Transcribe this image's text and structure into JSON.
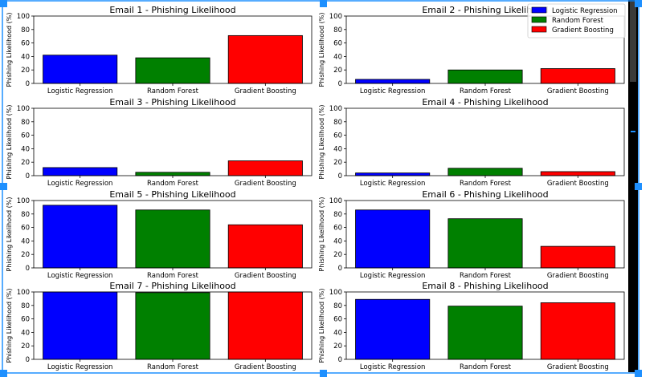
{
  "chart_data": [
    {
      "type": "bar",
      "title": "Email 1 - Phishing Likelihood",
      "ylabel": "Phishing Likelihood (%)",
      "categories": [
        "Logistic Regression",
        "Random Forest",
        "Gradient Boosting"
      ],
      "values": [
        42,
        38,
        71
      ],
      "ylim": [
        0,
        100
      ],
      "yticks": [
        "0",
        "20",
        "40",
        "60",
        "80",
        "100"
      ]
    },
    {
      "type": "bar",
      "title": "Email 2 - Phishing Likelihood",
      "ylabel": "Phishing Likelihood (%)",
      "categories": [
        "Logistic Regression",
        "Random Forest",
        "Gradient Boosting"
      ],
      "values": [
        6,
        20,
        22
      ],
      "ylim": [
        0,
        100
      ],
      "yticks": [
        "0",
        "20",
        "40",
        "60",
        "80",
        "100"
      ],
      "legend": {
        "placement": "top-right",
        "entries": [
          "Logistic Regression",
          "Random Forest",
          "Gradient Boosting"
        ]
      }
    },
    {
      "type": "bar",
      "title": "Email 3 - Phishing Likelihood",
      "ylabel": "Phishing Likelihood (%)",
      "categories": [
        "Logistic Regression",
        "Random Forest",
        "Gradient Boosting"
      ],
      "values": [
        12,
        5,
        22
      ],
      "ylim": [
        0,
        100
      ],
      "yticks": [
        "0",
        "20",
        "40",
        "60",
        "80",
        "100"
      ]
    },
    {
      "type": "bar",
      "title": "Email 4 - Phishing Likelihood",
      "ylabel": "Phishing Likelihood (%)",
      "categories": [
        "Logistic Regression",
        "Random Forest",
        "Gradient Boosting"
      ],
      "values": [
        4,
        11,
        6
      ],
      "ylim": [
        0,
        100
      ],
      "yticks": [
        "0",
        "20",
        "40",
        "60",
        "80",
        "100"
      ]
    },
    {
      "type": "bar",
      "title": "Email 5 - Phishing Likelihood",
      "ylabel": "Phishing Likelihood (%)",
      "categories": [
        "Logistic Regression",
        "Random Forest",
        "Gradient Boosting"
      ],
      "values": [
        93,
        86,
        64
      ],
      "ylim": [
        0,
        100
      ],
      "yticks": [
        "0",
        "20",
        "40",
        "60",
        "80",
        "100"
      ]
    },
    {
      "type": "bar",
      "title": "Email 6 - Phishing Likelihood",
      "ylabel": "Phishing Likelihood (%)",
      "categories": [
        "Logistic Regression",
        "Random Forest",
        "Gradient Boosting"
      ],
      "values": [
        86,
        73,
        32
      ],
      "ylim": [
        0,
        100
      ],
      "yticks": [
        "0",
        "20",
        "40",
        "60",
        "80",
        "100"
      ]
    },
    {
      "type": "bar",
      "title": "Email 7 - Phishing Likelihood",
      "ylabel": "Phishing Likelihood (%)",
      "categories": [
        "Logistic Regression",
        "Random Forest",
        "Gradient Boosting"
      ],
      "values": [
        100,
        99,
        100
      ],
      "ylim": [
        0,
        100
      ],
      "yticks": [
        "0",
        "20",
        "40",
        "60",
        "80",
        "100"
      ]
    },
    {
      "type": "bar",
      "title": "Email 8 - Phishing Likelihood",
      "ylabel": "Phishing Likelihood (%)",
      "categories": [
        "Logistic Regression",
        "Random Forest",
        "Gradient Boosting"
      ],
      "values": [
        89,
        79,
        84
      ],
      "ylim": [
        0,
        100
      ],
      "yticks": [
        "0",
        "20",
        "40",
        "60",
        "80",
        "100"
      ]
    }
  ],
  "colors": {
    "series": [
      "#0000ff",
      "#008000",
      "#ff0000"
    ],
    "selection_handle": "#1e90ff",
    "scrollbar_track": "#000000",
    "scrollbar_thumb": "#3a3a3a"
  }
}
